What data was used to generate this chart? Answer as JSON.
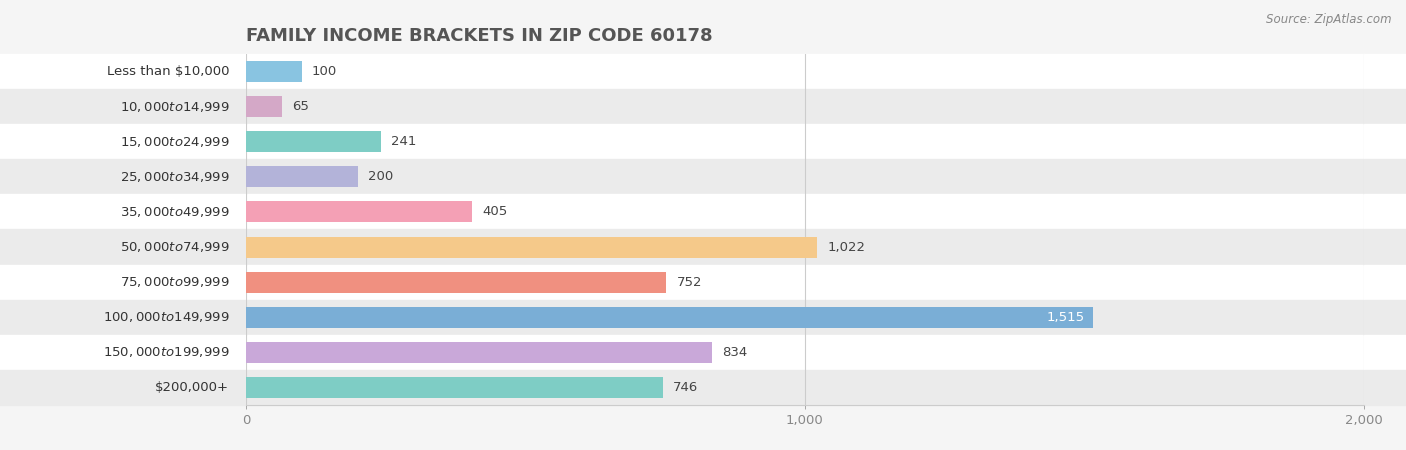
{
  "title": "Family Income Brackets in Zip Code 60178",
  "source": "Source: ZipAtlas.com",
  "categories": [
    "Less than $10,000",
    "$10,000 to $14,999",
    "$15,000 to $24,999",
    "$25,000 to $34,999",
    "$35,000 to $49,999",
    "$50,000 to $74,999",
    "$75,000 to $99,999",
    "$100,000 to $149,999",
    "$150,000 to $199,999",
    "$200,000+"
  ],
  "values": [
    100,
    65,
    241,
    200,
    405,
    1022,
    752,
    1515,
    834,
    746
  ],
  "bar_colors": [
    "#89c4e1",
    "#d4a8c7",
    "#7ecdc5",
    "#b3b3d9",
    "#f4a0b5",
    "#f5c98a",
    "#f09080",
    "#7aaed6",
    "#c9a8d9",
    "#7ecdc5"
  ],
  "xlim": [
    0,
    2000
  ],
  "xticks": [
    0,
    1000,
    2000
  ],
  "xticklabels": [
    "0",
    "1,000",
    "2,000"
  ],
  "bg_color": "#f5f5f5",
  "row_colors": [
    "#ffffff",
    "#ebebeb"
  ],
  "title_fontsize": 13,
  "label_fontsize": 9.5,
  "value_fontsize": 9.5,
  "bar_height": 0.6
}
